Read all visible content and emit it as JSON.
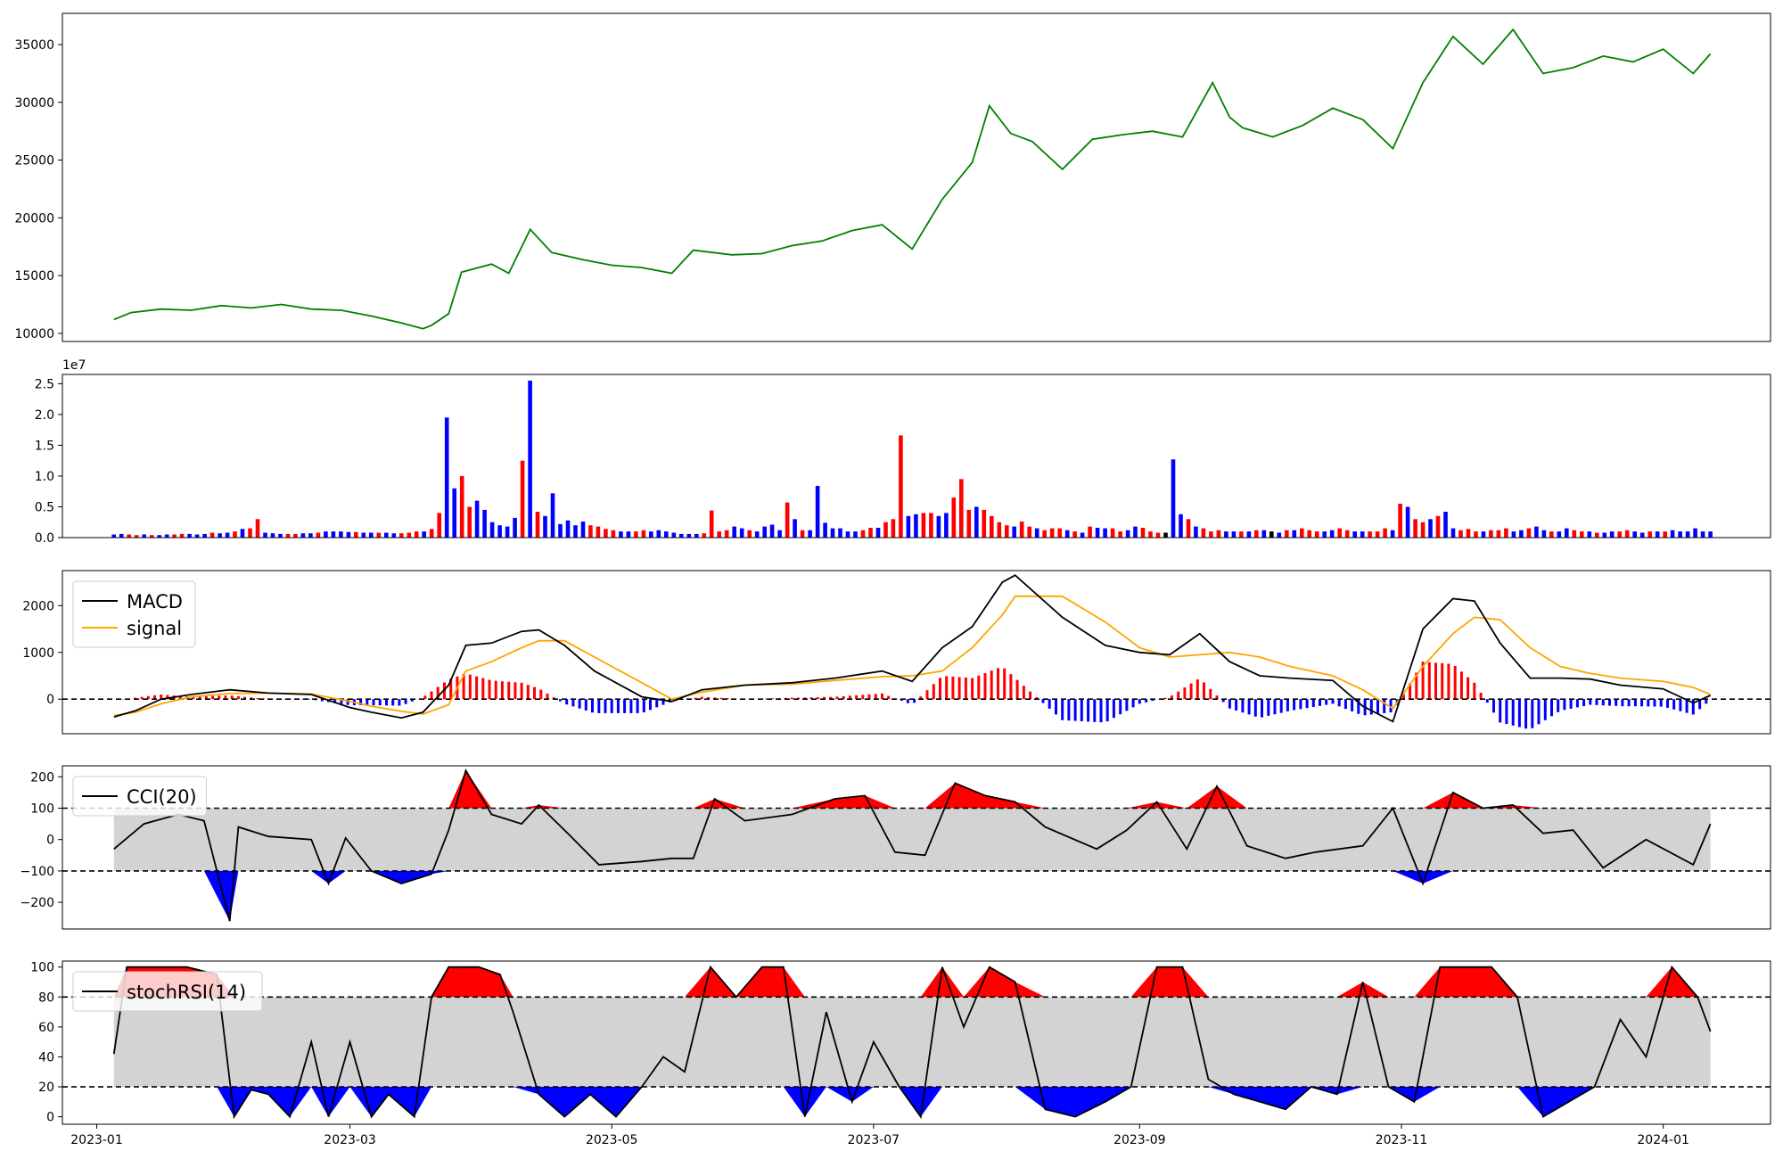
{
  "chart_data": [
    {
      "type": "line",
      "panel": "price",
      "color": "#008000",
      "ylim": [
        9300,
        37700
      ],
      "yticks": [
        10000,
        15000,
        20000,
        25000,
        30000,
        35000
      ],
      "ytick_labels": [
        "10000",
        "15000",
        "20000",
        "25000",
        "30000",
        "35000"
      ],
      "series": [
        {
          "x": [
            "2023-01-05",
            "2023-01-09",
            "2023-01-16",
            "2023-01-23",
            "2023-01-30",
            "2023-02-06",
            "2023-02-13",
            "2023-02-20",
            "2023-02-27",
            "2023-03-06",
            "2023-03-13",
            "2023-03-18",
            "2023-03-20",
            "2023-03-24",
            "2023-03-27",
            "2023-04-03",
            "2023-04-07",
            "2023-04-12",
            "2023-04-17",
            "2023-04-24",
            "2023-05-01",
            "2023-05-08",
            "2023-05-15",
            "2023-05-20",
            "2023-05-29",
            "2023-06-05",
            "2023-06-12",
            "2023-06-19",
            "2023-06-26",
            "2023-07-03",
            "2023-07-10",
            "2023-07-17",
            "2023-07-24",
            "2023-07-28",
            "2023-08-02",
            "2023-08-07",
            "2023-08-14",
            "2023-08-21",
            "2023-08-28",
            "2023-09-04",
            "2023-09-11",
            "2023-09-18",
            "2023-09-22",
            "2023-09-25",
            "2023-10-02",
            "2023-10-09",
            "2023-10-16",
            "2023-10-23",
            "2023-10-30",
            "2023-11-06",
            "2023-11-13",
            "2023-11-20",
            "2023-11-27",
            "2023-12-04",
            "2023-12-11",
            "2023-12-18",
            "2023-12-25",
            "2024-01-01",
            "2024-01-08",
            "2024-01-12"
          ],
          "y": [
            11200,
            11800,
            12100,
            12000,
            12400,
            12200,
            12500,
            12100,
            12000,
            11500,
            10900,
            10400,
            10700,
            11700,
            15300,
            16000,
            15200,
            19000,
            17000,
            16400,
            15900,
            15700,
            15200,
            17200,
            16800,
            16900,
            17600,
            18000,
            18900,
            19400,
            17300,
            21600,
            24800,
            29700,
            27300,
            26600,
            24200,
            26800,
            27200,
            27500,
            27000,
            31700,
            28700,
            27800,
            27000,
            28000,
            29500,
            28500,
            26000,
            31700,
            35700,
            33300,
            36300,
            32500,
            33000,
            34000,
            33500,
            34600,
            32500,
            34200
          ]
        }
      ]
    },
    {
      "type": "bar",
      "panel": "volume",
      "scale_label": "1e7",
      "ylim": [
        0,
        2.65
      ],
      "yticks": [
        0,
        0.5,
        1.0,
        1.5,
        2.0,
        2.5
      ],
      "ytick_labels": [
        "0.0",
        "0.5",
        "1.0",
        "1.5",
        "2.0",
        "2.5"
      ],
      "colors": {
        "up": "#ff0000",
        "down": "#0000ff",
        "flat": "#000000"
      },
      "x_start": "2023-01-05",
      "x_end": "2024-01-12",
      "values": [
        0.05,
        0.06,
        0.05,
        0.04,
        0.05,
        0.04,
        0.04,
        0.05,
        0.05,
        0.06,
        0.06,
        0.05,
        0.06,
        0.08,
        0.07,
        0.08,
        0.1,
        0.14,
        0.15,
        0.3,
        0.08,
        0.07,
        0.06,
        0.06,
        0.06,
        0.07,
        0.07,
        0.08,
        0.1,
        0.1,
        0.1,
        0.09,
        0.09,
        0.08,
        0.08,
        0.08,
        0.08,
        0.07,
        0.07,
        0.08,
        0.1,
        0.1,
        0.14,
        0.4,
        1.95,
        0.8,
        1.0,
        0.5,
        0.6,
        0.45,
        0.25,
        0.2,
        0.18,
        0.32,
        1.25,
        2.55,
        0.42,
        0.35,
        0.72,
        0.22,
        0.28,
        0.2,
        0.26,
        0.2,
        0.18,
        0.14,
        0.12,
        0.1,
        0.1,
        0.1,
        0.12,
        0.1,
        0.12,
        0.1,
        0.08,
        0.06,
        0.06,
        0.06,
        0.07,
        0.44,
        0.1,
        0.12,
        0.18,
        0.15,
        0.12,
        0.1,
        0.18,
        0.21,
        0.12,
        0.57,
        0.3,
        0.12,
        0.12,
        0.84,
        0.24,
        0.15,
        0.15,
        0.1,
        0.1,
        0.12,
        0.16,
        0.16,
        0.25,
        0.3,
        1.66,
        0.35,
        0.38,
        0.4,
        0.4,
        0.35,
        0.4,
        0.65,
        0.95,
        0.45,
        0.5,
        0.45,
        0.35,
        0.25,
        0.2,
        0.18,
        0.26,
        0.18,
        0.15,
        0.12,
        0.15,
        0.15,
        0.12,
        0.1,
        0.08,
        0.18,
        0.16,
        0.15,
        0.15,
        0.1,
        0.12,
        0.18,
        0.16,
        0.1,
        0.08,
        0.08,
        1.27,
        0.38,
        0.3,
        0.18,
        0.15,
        0.1,
        0.12,
        0.1,
        0.1,
        0.1,
        0.1,
        0.12,
        0.12,
        0.1,
        0.08,
        0.12,
        0.12,
        0.15,
        0.12,
        0.1,
        0.1,
        0.12,
        0.15,
        0.12,
        0.1,
        0.1,
        0.1,
        0.1,
        0.15,
        0.12,
        0.55,
        0.5,
        0.3,
        0.25,
        0.3,
        0.35,
        0.42,
        0.15,
        0.12,
        0.14,
        0.1,
        0.1,
        0.12,
        0.12,
        0.15,
        0.1,
        0.12,
        0.15,
        0.18,
        0.12,
        0.1,
        0.1,
        0.15,
        0.12,
        0.1,
        0.1,
        0.08,
        0.08,
        0.1,
        0.1,
        0.12,
        0.1,
        0.08,
        0.1,
        0.1,
        0.1,
        0.12,
        0.1,
        0.1,
        0.15,
        0.1,
        0.1
      ],
      "directions": "bbrrbrbbrrbbbrbbrbrrbbbrrbbrbbbbrbbrbbrrrbrrbbrrbbbbbbrbrbbbbbbrrrrbbrrbbbbbbbrrrrbbrbbbbrbrbbbbbbbrrbrrrbbrrbbrrrbrrrrbrrbrrrbrbrbbrrbbrrrfbbrbrrrbbrbrbfbrbrrrbbrrbbrrrbrbrrbrbbrrrbrrrbbrbbrbbrrbrbbrrbbrbr"
    },
    {
      "type": "bar",
      "panel": "macd",
      "ylim": [
        -740,
        2750
      ],
      "yticks": [
        0,
        1000,
        2000
      ],
      "ytick_labels": [
        "0",
        "1000",
        "2000"
      ],
      "legend": [
        {
          "label": "MACD",
          "color": "#000000"
        },
        {
          "label": "signal",
          "color": "#ffa500"
        }
      ],
      "hist_colors": {
        "pos": "#ff0000",
        "neg": "#0000ff"
      },
      "x": [
        "2023-01-05",
        "2023-01-10",
        "2023-01-16",
        "2023-01-23",
        "2023-02-01",
        "2023-02-10",
        "2023-02-20",
        "2023-03-01",
        "2023-03-06",
        "2023-03-13",
        "2023-03-18",
        "2023-03-24",
        "2023-03-28",
        "2023-04-03",
        "2023-04-10",
        "2023-04-14",
        "2023-04-20",
        "2023-04-27",
        "2023-05-08",
        "2023-05-15",
        "2023-05-22",
        "2023-06-01",
        "2023-06-12",
        "2023-06-22",
        "2023-07-03",
        "2023-07-10",
        "2023-07-17",
        "2023-07-24",
        "2023-07-31",
        "2023-08-03",
        "2023-08-14",
        "2023-08-24",
        "2023-09-01",
        "2023-09-08",
        "2023-09-15",
        "2023-09-22",
        "2023-09-29",
        "2023-10-06",
        "2023-10-16",
        "2023-10-23",
        "2023-10-30",
        "2023-11-06",
        "2023-11-13",
        "2023-11-18",
        "2023-11-24",
        "2023-12-01",
        "2023-12-08",
        "2023-12-15",
        "2023-12-22",
        "2024-01-01",
        "2024-01-08",
        "2024-01-12"
      ],
      "macd": [
        -380,
        -250,
        0,
        100,
        200,
        130,
        100,
        -180,
        -280,
        -400,
        -280,
        300,
        1150,
        1200,
        1450,
        1480,
        1150,
        600,
        50,
        -50,
        200,
        300,
        350,
        450,
        600,
        380,
        1100,
        1550,
        2500,
        2650,
        1750,
        1150,
        1000,
        950,
        1400,
        800,
        500,
        450,
        400,
        -150,
        -480,
        1500,
        2150,
        2100,
        1200,
        450,
        450,
        430,
        300,
        220,
        -80,
        80
      ],
      "signal": [
        -350,
        -280,
        -100,
        50,
        120,
        130,
        110,
        -50,
        -150,
        -260,
        -320,
        -120,
        600,
        800,
        1100,
        1250,
        1250,
        900,
        350,
        0,
        150,
        300,
        320,
        400,
        480,
        500,
        600,
        1100,
        1800,
        2200,
        2200,
        1650,
        1100,
        900,
        950,
        1000,
        900,
        700,
        500,
        200,
        -200,
        700,
        1400,
        1750,
        1700,
        1100,
        700,
        550,
        450,
        380,
        250,
        100
      ],
      "histogram": [
        -30,
        30,
        100,
        50,
        80,
        0,
        -10,
        -130,
        -130,
        -140,
        40,
        420,
        550,
        400,
        350,
        230,
        -100,
        -300,
        -300,
        -50,
        50,
        0,
        30,
        50,
        120,
        -120,
        500,
        450,
        700,
        450,
        -450,
        -500,
        -100,
        50,
        450,
        -200,
        -400,
        -250,
        -100,
        -350,
        -280,
        800,
        750,
        350,
        -500,
        -650,
        -250,
        -120,
        -150,
        -160,
        -330,
        -20
      ]
    },
    {
      "type": "line",
      "panel": "cci",
      "ylim": [
        -285,
        235
      ],
      "yticks": [
        -200,
        -100,
        0,
        100,
        200
      ],
      "ytick_labels": [
        "−200",
        "−100",
        "0",
        "100",
        "200"
      ],
      "levels": [
        100,
        -100
      ],
      "band_color": "#d3d3d3",
      "fill_colors": {
        "above": "#ff0000",
        "below": "#0000ff"
      },
      "legend": [
        {
          "label": "CCI(20)",
          "color": "#000000"
        }
      ],
      "x": [
        "2023-01-05",
        "2023-01-12",
        "2023-01-20",
        "2023-01-26",
        "2023-02-01",
        "2023-02-03",
        "2023-02-10",
        "2023-02-20",
        "2023-02-24",
        "2023-02-28",
        "2023-03-06",
        "2023-03-13",
        "2023-03-20",
        "2023-03-24",
        "2023-03-28",
        "2023-04-03",
        "2023-04-10",
        "2023-04-14",
        "2023-04-20",
        "2023-04-28",
        "2023-05-08",
        "2023-05-15",
        "2023-05-20",
        "2023-05-25",
        "2023-06-01",
        "2023-06-12",
        "2023-06-22",
        "2023-06-29",
        "2023-07-06",
        "2023-07-13",
        "2023-07-20",
        "2023-07-27",
        "2023-08-03",
        "2023-08-10",
        "2023-08-22",
        "2023-08-29",
        "2023-09-05",
        "2023-09-12",
        "2023-09-19",
        "2023-09-26",
        "2023-10-05",
        "2023-10-12",
        "2023-10-23",
        "2023-10-30",
        "2023-11-06",
        "2023-11-13",
        "2023-11-20",
        "2023-11-27",
        "2023-12-04",
        "2023-12-11",
        "2023-12-18",
        "2023-12-28",
        "2024-01-08",
        "2024-01-12"
      ],
      "values": [
        -30,
        50,
        80,
        60,
        -260,
        40,
        10,
        0,
        -140,
        5,
        -100,
        -140,
        -110,
        30,
        220,
        80,
        50,
        110,
        30,
        -80,
        -70,
        -60,
        -60,
        130,
        60,
        80,
        130,
        140,
        -40,
        -50,
        180,
        140,
        120,
        40,
        -30,
        30,
        120,
        -30,
        170,
        -20,
        -60,
        -40,
        -20,
        100,
        -140,
        150,
        100,
        110,
        20,
        30,
        -90,
        0,
        -80,
        50
      ]
    },
    {
      "type": "line",
      "panel": "stochrsi",
      "ylim": [
        -5,
        104
      ],
      "yticks": [
        0,
        20,
        40,
        60,
        80,
        100
      ],
      "ytick_labels": [
        "0",
        "20",
        "40",
        "60",
        "80",
        "100"
      ],
      "levels": [
        80,
        20
      ],
      "band_color": "#d3d3d3",
      "fill_colors": {
        "above": "#ff0000",
        "below": "#0000ff"
      },
      "legend": [
        {
          "label": "stochRSI(14)",
          "color": "#000000"
        }
      ],
      "xticks": [
        "2023-01",
        "2023-03",
        "2023-05",
        "2023-07",
        "2023-09",
        "2023-11",
        "2024-01"
      ],
      "xlim": [
        "2022-12-24",
        "2024-01-26"
      ],
      "x": [
        "2023-01-05",
        "2023-01-08",
        "2023-01-15",
        "2023-01-22",
        "2023-01-29",
        "2023-02-02",
        "2023-02-06",
        "2023-02-10",
        "2023-02-15",
        "2023-02-20",
        "2023-02-24",
        "2023-03-01",
        "2023-03-06",
        "2023-03-10",
        "2023-03-16",
        "2023-03-20",
        "2023-03-24",
        "2023-03-31",
        "2023-04-05",
        "2023-04-08",
        "2023-04-14",
        "2023-04-20",
        "2023-04-26",
        "2023-05-02",
        "2023-05-08",
        "2023-05-13",
        "2023-05-18",
        "2023-05-24",
        "2023-05-30",
        "2023-06-05",
        "2023-06-10",
        "2023-06-15",
        "2023-06-20",
        "2023-06-26",
        "2023-07-01",
        "2023-07-07",
        "2023-07-12",
        "2023-07-17",
        "2023-07-22",
        "2023-07-28",
        "2023-08-03",
        "2023-08-10",
        "2023-08-17",
        "2023-08-24",
        "2023-08-30",
        "2023-09-05",
        "2023-09-11",
        "2023-09-17",
        "2023-09-23",
        "2023-09-29",
        "2023-10-05",
        "2023-10-11",
        "2023-10-17",
        "2023-10-23",
        "2023-10-29",
        "2023-11-04",
        "2023-11-10",
        "2023-11-16",
        "2023-11-22",
        "2023-11-28",
        "2023-12-04",
        "2023-12-10",
        "2023-12-16",
        "2023-12-22",
        "2023-12-28",
        "2024-01-03",
        "2024-01-09",
        "2024-01-12"
      ],
      "values": [
        42,
        100,
        100,
        100,
        95,
        0,
        18,
        15,
        0,
        50,
        0,
        50,
        0,
        15,
        0,
        80,
        100,
        100,
        95,
        70,
        15,
        0,
        15,
        0,
        20,
        40,
        30,
        100,
        80,
        100,
        100,
        0,
        70,
        10,
        50,
        20,
        0,
        100,
        60,
        100,
        90,
        5,
        0,
        10,
        20,
        100,
        100,
        25,
        15,
        10,
        5,
        20,
        15,
        90,
        20,
        10,
        100,
        100,
        100,
        80,
        0,
        10,
        20,
        65,
        40,
        100,
        80,
        57
      ]
    }
  ]
}
